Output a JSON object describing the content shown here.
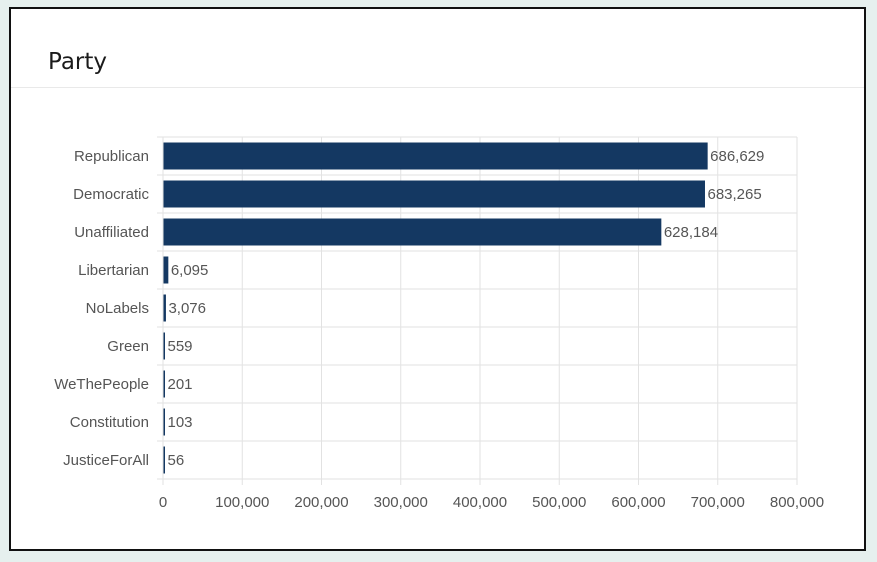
{
  "panel": {
    "title": "Party"
  },
  "colors": {
    "bar": "#143862",
    "grid": "#e2e2e2",
    "text": "#555555"
  },
  "chart_data": {
    "type": "bar",
    "orientation": "horizontal",
    "categories": [
      "Republican",
      "Democratic",
      "Unaffiliated",
      "Libertarian",
      "NoLabels",
      "Green",
      "WeThePeople",
      "Constitution",
      "JusticeForAll"
    ],
    "values": [
      686629,
      683265,
      628184,
      6095,
      3076,
      559,
      201,
      103,
      56
    ],
    "value_labels": [
      "686,629",
      "683,265",
      "628,184",
      "6,095",
      "3,076",
      "559",
      "201",
      "103",
      "56"
    ],
    "xlim": [
      0,
      800000
    ],
    "xticks": [
      0,
      100000,
      200000,
      300000,
      400000,
      500000,
      600000,
      700000,
      800000
    ],
    "xtick_labels": [
      "0",
      "100,000",
      "200,000",
      "300,000",
      "400,000",
      "500,000",
      "600,000",
      "700,000",
      "800,000"
    ],
    "title": "",
    "xlabel": "",
    "ylabel": "",
    "grid": true,
    "legend": "none"
  }
}
